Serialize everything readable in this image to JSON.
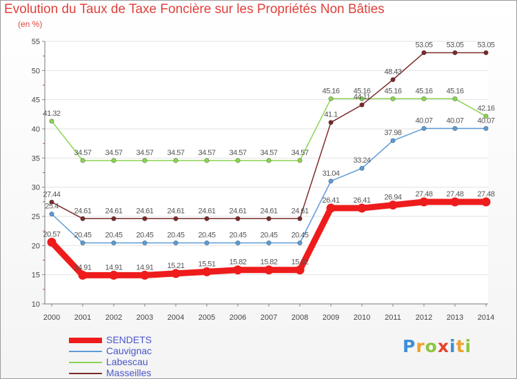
{
  "title": "Evolution du Taux de Taxe Foncière sur les Propriétés Non Bâties",
  "subtitle": "(en %)",
  "logo": {
    "text": "Proxiti",
    "letters": [
      {
        "ch": "P",
        "color": "#3d8fd6"
      },
      {
        "ch": "r",
        "color": "#f0a030"
      },
      {
        "ch": "o",
        "color": "#8cc63e"
      },
      {
        "ch": "x",
        "color": "#e8412c"
      },
      {
        "ch": "i",
        "color": "#3d8fd6"
      },
      {
        "ch": "t",
        "color": "#f0a030"
      },
      {
        "ch": "i",
        "color": "#8cc63e"
      }
    ]
  },
  "chart_data": {
    "type": "line",
    "title": "Evolution du Taux de Taxe Foncière sur les Propriétés Non Bâties",
    "ylabel": "(en %)",
    "xlabel": "",
    "ylim": [
      10,
      55
    ],
    "yticks": [
      "10",
      "15",
      "20",
      "25",
      "30",
      "35",
      "40",
      "45",
      "50",
      "55"
    ],
    "grid": "horizontal",
    "categories": [
      "2000",
      "2001",
      "2002",
      "2003",
      "2004",
      "2005",
      "2006",
      "2007",
      "2008",
      "2009",
      "2010",
      "2011",
      "2012",
      "2013",
      "2014"
    ],
    "series": [
      {
        "name": "SENDETS",
        "color": "#ee1c1c",
        "bold": true,
        "values": [
          20.57,
          14.91,
          14.91,
          14.91,
          15.21,
          15.51,
          15.82,
          15.82,
          15.82,
          26.41,
          26.41,
          26.94,
          27.48,
          27.48,
          27.48
        ],
        "labels": [
          "20.57",
          "14.91",
          "14.91",
          "14.91",
          "15.21",
          "15.51",
          "15.82",
          "15.82",
          "15.82",
          "26.41",
          "26.41",
          "26.94",
          "27.48",
          "27.48",
          "27.48"
        ]
      },
      {
        "name": "Cauvignac",
        "color": "#5b9bd5",
        "values": [
          25.4,
          20.45,
          20.45,
          20.45,
          20.45,
          20.45,
          20.45,
          20.45,
          20.45,
          31.04,
          33.24,
          37.98,
          40.07,
          40.07,
          40.07
        ],
        "labels": [
          "25.4",
          "20.45",
          "20.45",
          "20.45",
          "20.45",
          "20.45",
          "20.45",
          "20.45",
          "20.45",
          "31.04",
          "33.24",
          "37.98",
          "40.07",
          "40.07",
          "40.07"
        ]
      },
      {
        "name": "Labescau",
        "color": "#8cd450",
        "values": [
          41.32,
          34.57,
          34.57,
          34.57,
          34.57,
          34.57,
          34.57,
          34.57,
          34.57,
          45.16,
          45.16,
          45.16,
          45.16,
          45.16,
          42.16
        ],
        "labels": [
          "41.32",
          "34.57",
          "34.57",
          "34.57",
          "34.57",
          "34.57",
          "34.57",
          "34.57",
          "34.57",
          "45.16",
          "45.16",
          "45.16",
          "45.16",
          "45.16",
          "42.16"
        ]
      },
      {
        "name": "Masseilles",
        "color": "#7a2a2a",
        "values": [
          27.44,
          24.61,
          24.61,
          24.61,
          24.61,
          24.61,
          24.61,
          24.61,
          24.61,
          41.1,
          44.11,
          48.43,
          53.05,
          53.05,
          53.05
        ],
        "labels": [
          "27.44",
          "24.61",
          "24.61",
          "24.61",
          "24.61",
          "24.61",
          "24.61",
          "24.61",
          "24.61",
          "41.1",
          "44.11",
          "48.43",
          "53.05",
          "53.05",
          "53.05"
        ]
      }
    ]
  }
}
